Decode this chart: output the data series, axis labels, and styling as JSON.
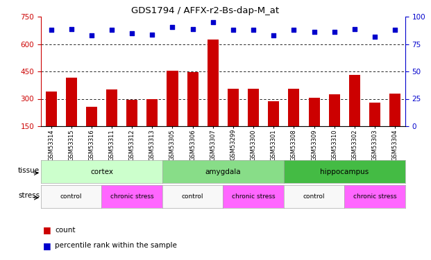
{
  "title": "GDS1794 / AFFX-r2-Bs-dap-M_at",
  "samples": [
    "GSM53314",
    "GSM53315",
    "GSM53316",
    "GSM53311",
    "GSM53312",
    "GSM53313",
    "GSM53305",
    "GSM53306",
    "GSM53307",
    "GSM53299",
    "GSM53300",
    "GSM53301",
    "GSM53308",
    "GSM53309",
    "GSM53310",
    "GSM53302",
    "GSM53303",
    "GSM53304"
  ],
  "bar_values": [
    340,
    415,
    255,
    350,
    295,
    300,
    455,
    445,
    625,
    355,
    355,
    285,
    355,
    305,
    325,
    430,
    280,
    330
  ],
  "percentile_values": [
    88,
    89,
    83,
    88,
    85,
    84,
    91,
    89,
    95,
    88,
    88,
    83,
    88,
    86,
    86,
    89,
    82,
    88
  ],
  "bar_color": "#cc0000",
  "dot_color": "#0000cc",
  "ylim_left": [
    150,
    750
  ],
  "ylim_right": [
    0,
    100
  ],
  "yticks_left": [
    150,
    300,
    450,
    600,
    750
  ],
  "yticks_right": [
    0,
    25,
    50,
    75,
    100
  ],
  "grid_values": [
    300,
    450,
    600
  ],
  "tissue_groups": [
    {
      "label": "cortex",
      "start": 0,
      "end": 6,
      "color": "#ccffcc"
    },
    {
      "label": "amygdala",
      "start": 6,
      "end": 12,
      "color": "#88dd88"
    },
    {
      "label": "hippocampus",
      "start": 12,
      "end": 18,
      "color": "#44bb44"
    }
  ],
  "stress_groups": [
    {
      "label": "control",
      "start": 0,
      "end": 3,
      "color": "#f8f8f8"
    },
    {
      "label": "chronic stress",
      "start": 3,
      "end": 6,
      "color": "#ff66ff"
    },
    {
      "label": "control",
      "start": 6,
      "end": 9,
      "color": "#f8f8f8"
    },
    {
      "label": "chronic stress",
      "start": 9,
      "end": 12,
      "color": "#ff66ff"
    },
    {
      "label": "control",
      "start": 12,
      "end": 15,
      "color": "#f8f8f8"
    },
    {
      "label": "chronic stress",
      "start": 15,
      "end": 18,
      "color": "#ff66ff"
    }
  ],
  "tissue_label": "tissue",
  "stress_label": "stress",
  "legend_count_label": "count",
  "legend_pct_label": "percentile rank within the sample",
  "bg_color": "#ffffff",
  "tick_color_left": "#cc0000",
  "tick_color_right": "#0000cc"
}
